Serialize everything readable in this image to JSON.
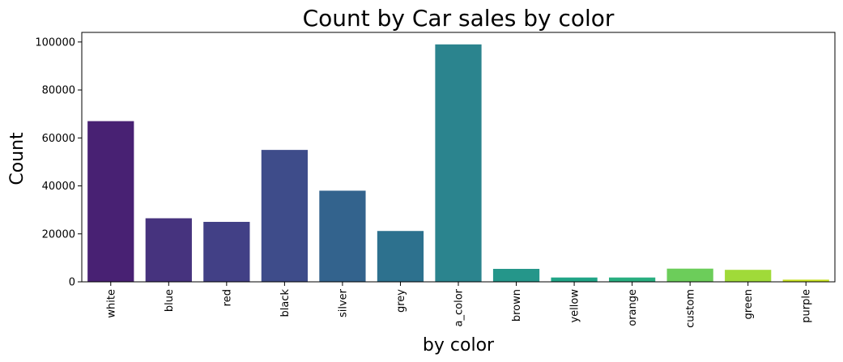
{
  "chart_data": {
    "type": "bar",
    "title": "Count by Car sales by color",
    "xlabel": "by color",
    "ylabel": "Count",
    "categories": [
      "white",
      "blue",
      "red",
      "black",
      "silver",
      "grey",
      "a_color",
      "brown",
      "yellow",
      "orange",
      "custom",
      "green",
      "purple"
    ],
    "values": [
      67000,
      26500,
      25000,
      55000,
      38000,
      21200,
      99000,
      5400,
      1800,
      1800,
      5500,
      5000,
      900
    ],
    "colors": [
      "#482173",
      "#46337e",
      "#424086",
      "#3e4c8a",
      "#33638d",
      "#2d718e",
      "#2b848e",
      "#25968a",
      "#20a486",
      "#28ae80",
      "#6ccd5a",
      "#a0da39",
      "#c6e021"
    ],
    "yticks": [
      0,
      20000,
      40000,
      60000,
      80000,
      100000
    ],
    "ylim": [
      0,
      104000
    ],
    "grid": false,
    "legend": "none"
  }
}
